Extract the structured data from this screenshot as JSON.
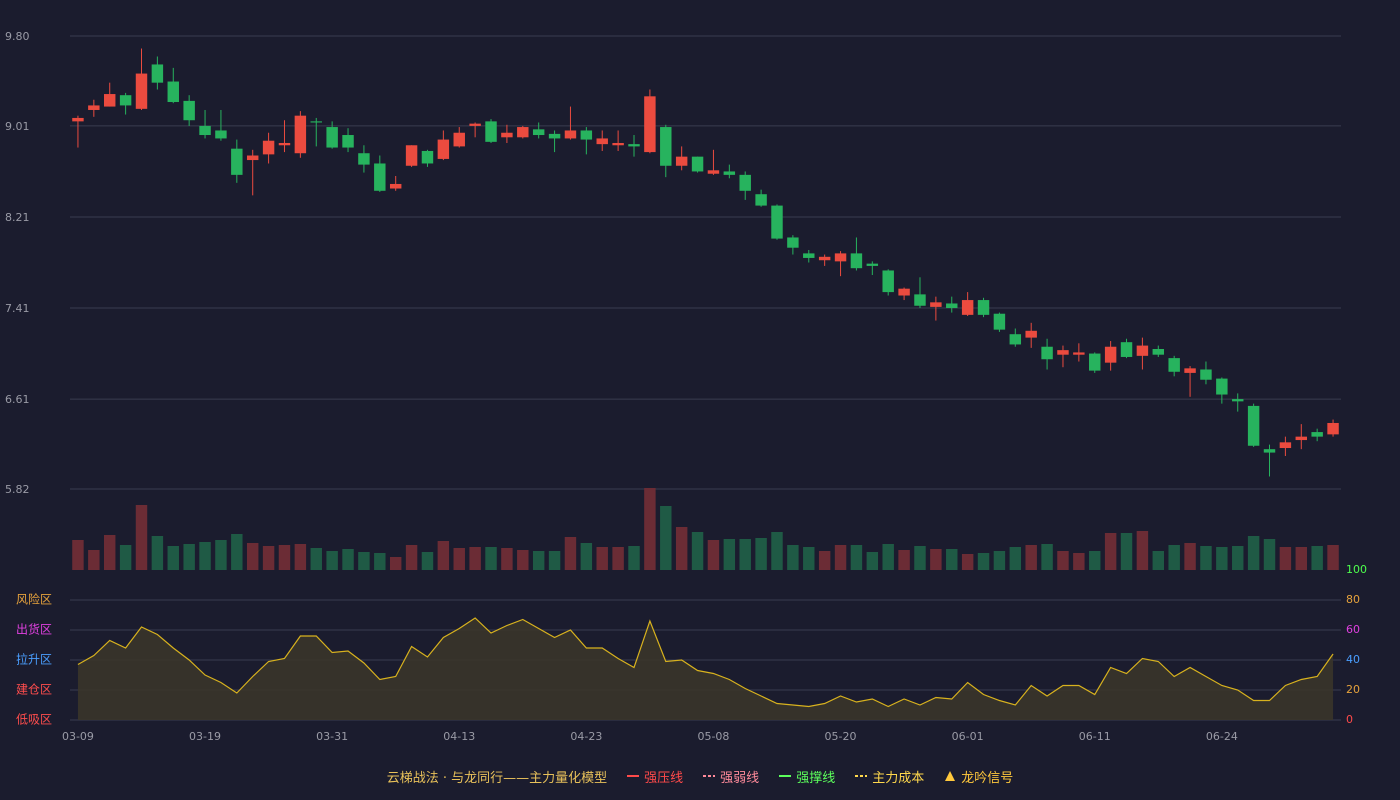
{
  "chart_data": [
    {
      "type": "candlestick",
      "categories": [
        "03-09",
        null,
        null,
        null,
        null,
        null,
        null,
        null,
        "03-19",
        null,
        null,
        null,
        null,
        null,
        null,
        null,
        "03-31",
        null,
        null,
        null,
        null,
        null,
        null,
        null,
        "04-13",
        null,
        null,
        null,
        null,
        null,
        null,
        null,
        "04-23",
        null,
        null,
        null,
        null,
        null,
        null,
        null,
        "05-08",
        null,
        null,
        null,
        null,
        null,
        null,
        null,
        "05-20",
        null,
        null,
        null,
        null,
        null,
        null,
        null,
        "06-01",
        null,
        null,
        null,
        null,
        null,
        null,
        null,
        "06-11",
        null,
        null,
        null,
        null,
        null,
        null,
        null,
        "06-24",
        null,
        null,
        null,
        null,
        null,
        null,
        null
      ],
      "open": [
        9.05,
        9.15,
        9.18,
        9.28,
        9.16,
        9.55,
        9.4,
        9.23,
        9.01,
        8.97,
        8.81,
        8.71,
        8.76,
        8.84,
        8.77,
        9.05,
        9.0,
        8.93,
        8.77,
        8.68,
        8.46,
        8.66,
        8.79,
        8.72,
        8.83,
        9.01,
        9.05,
        8.91,
        8.91,
        8.98,
        8.94,
        8.9,
        8.97,
        8.85,
        8.84,
        8.85,
        8.78,
        9.0,
        8.66,
        8.74,
        8.59,
        8.61,
        8.58,
        8.41,
        8.31,
        8.03,
        7.89,
        7.83,
        7.82,
        7.89,
        7.8,
        7.74,
        7.52,
        7.53,
        7.42,
        7.45,
        7.35,
        7.48,
        7.36,
        7.18,
        7.15,
        7.07,
        7.0,
        7.0,
        7.01,
        6.93,
        7.11,
        6.99,
        7.05,
        6.97,
        6.84,
        6.87,
        6.79,
        6.61,
        6.55,
        6.17,
        6.18,
        6.25,
        6.32,
        6.3
      ],
      "high": [
        9.1,
        9.24,
        9.39,
        9.3,
        9.69,
        9.62,
        9.52,
        9.28,
        9.15,
        9.15,
        8.89,
        8.8,
        8.95,
        9.06,
        9.14,
        9.08,
        9.05,
        8.99,
        8.84,
        8.75,
        8.57,
        8.84,
        8.8,
        8.97,
        9.0,
        9.04,
        9.07,
        9.02,
        9.01,
        9.04,
        8.97,
        9.18,
        9.0,
        8.97,
        8.97,
        8.93,
        9.33,
        9.02,
        8.83,
        8.74,
        8.8,
        8.67,
        8.61,
        8.45,
        8.32,
        8.05,
        7.92,
        7.88,
        7.91,
        8.03,
        7.82,
        7.75,
        7.59,
        7.68,
        7.51,
        7.51,
        7.55,
        7.5,
        7.37,
        7.23,
        7.28,
        7.14,
        7.08,
        7.1,
        7.02,
        7.12,
        7.14,
        7.15,
        7.08,
        6.99,
        6.9,
        6.94,
        6.8,
        6.66,
        6.57,
        6.21,
        6.28,
        6.39,
        6.35,
        6.43
      ],
      "low": [
        8.82,
        9.09,
        9.18,
        9.11,
        9.15,
        9.33,
        9.21,
        9.01,
        8.9,
        8.88,
        8.51,
        8.4,
        8.68,
        8.78,
        8.73,
        8.83,
        8.81,
        8.78,
        8.6,
        8.43,
        8.44,
        8.65,
        8.65,
        8.71,
        8.82,
        8.91,
        8.86,
        8.86,
        8.9,
        8.9,
        8.78,
        8.89,
        8.76,
        8.79,
        8.79,
        8.74,
        8.77,
        8.56,
        8.62,
        8.6,
        8.58,
        8.55,
        8.36,
        8.3,
        8.01,
        7.88,
        7.81,
        7.78,
        7.69,
        7.74,
        7.7,
        7.52,
        7.48,
        7.41,
        7.3,
        7.37,
        7.34,
        7.33,
        7.2,
        7.07,
        7.06,
        6.87,
        6.89,
        6.94,
        6.84,
        6.86,
        6.97,
        6.87,
        6.98,
        6.81,
        6.63,
        6.74,
        6.57,
        6.5,
        6.19,
        5.93,
        6.11,
        6.17,
        6.24,
        6.28
      ],
      "close": [
        9.08,
        9.19,
        9.29,
        9.19,
        9.47,
        9.39,
        9.22,
        9.06,
        8.93,
        8.9,
        8.58,
        8.75,
        8.88,
        8.86,
        9.1,
        9.04,
        8.82,
        8.82,
        8.67,
        8.44,
        8.5,
        8.84,
        8.68,
        8.89,
        8.95,
        9.03,
        8.87,
        8.95,
        9.0,
        8.93,
        8.9,
        8.97,
        8.89,
        8.9,
        8.86,
        8.83,
        9.27,
        8.66,
        8.74,
        8.61,
        8.62,
        8.58,
        8.44,
        8.31,
        8.02,
        7.94,
        7.85,
        7.86,
        7.89,
        7.76,
        7.78,
        7.55,
        7.58,
        7.43,
        7.46,
        7.41,
        7.48,
        7.35,
        7.22,
        7.09,
        7.21,
        6.96,
        7.04,
        7.02,
        6.86,
        7.07,
        6.98,
        7.08,
        7.0,
        6.85,
        6.88,
        6.78,
        6.65,
        6.59,
        6.2,
        6.14,
        6.23,
        6.28,
        6.28,
        6.4
      ],
      "up_color": "#eb4b3f",
      "down_color": "#27b35e",
      "ylim": [
        5.82,
        9.8
      ],
      "yticks": [
        {
          "value": 9.8,
          "label": "9.80"
        },
        9.01,
        8.21,
        7.41,
        6.61,
        5.82
      ],
      "grid": true
    },
    {
      "type": "bar",
      "values": [
        30,
        20,
        35,
        25,
        65,
        34,
        24,
        26,
        28,
        30,
        36,
        27,
        24,
        25,
        26,
        22,
        19,
        21,
        18,
        17,
        13,
        25,
        18,
        29,
        22,
        23,
        23,
        22,
        20,
        19,
        19,
        33,
        27,
        23,
        23,
        24,
        82,
        64,
        43,
        38,
        30,
        31,
        31,
        32,
        38,
        25,
        23,
        19,
        25,
        25,
        18,
        26,
        20,
        24,
        21,
        21,
        16,
        17,
        19,
        23,
        25,
        26,
        19,
        17,
        19,
        37,
        37,
        39,
        19,
        25,
        27,
        24,
        23,
        24,
        34,
        31,
        23,
        23,
        24,
        25
      ],
      "up_color": "#6b2c35",
      "down_color": "#1f5a45"
    },
    {
      "type": "line",
      "values": [
        37,
        43,
        53,
        48,
        62,
        57,
        48,
        40,
        30,
        25,
        18,
        29,
        39,
        41,
        56,
        56,
        45,
        46,
        38,
        27,
        29,
        49,
        42,
        55,
        61,
        68,
        58,
        63,
        67,
        61,
        55,
        60,
        48,
        48,
        41,
        35,
        66,
        39,
        40,
        33,
        31,
        27,
        21,
        16,
        11,
        10,
        9,
        11,
        16,
        12,
        14,
        9,
        14,
        10,
        15,
        14,
        25,
        17,
        13,
        10,
        23,
        16,
        23,
        23,
        17,
        35,
        31,
        41,
        39,
        29,
        35,
        29,
        23,
        20,
        13,
        13,
        23,
        27,
        29,
        44
      ],
      "color": "#d8b21e",
      "fill": "#3b3629",
      "y2lim": [
        0,
        100
      ],
      "y2ticks": [
        0,
        20,
        40,
        60,
        80,
        100
      ],
      "tick_colors": [
        "#ff4a4a",
        "#e6a23c",
        "#4a9eff",
        "#e040e0",
        "#e6a23c",
        "#4cff4c"
      ],
      "zones": [
        {
          "label": "风险区",
          "color": "#e6a23c"
        },
        {
          "label": "出货区",
          "color": "#e040e0"
        },
        {
          "label": "拉升区",
          "color": "#4a9eff"
        },
        {
          "label": "建仓区",
          "color": "#ff4d4d"
        },
        {
          "label": "低吸区",
          "color": "#ff4d4d"
        }
      ],
      "grid": true
    }
  ],
  "legend": {
    "title": "云梯战法 · 与龙同行——主力量化模型",
    "title_color": "#e8c15a",
    "items": [
      {
        "name": "强压线",
        "color": "#ff4a4a",
        "style": "solid"
      },
      {
        "name": "强弱线",
        "color": "#ff8a9a",
        "style": "dashed"
      },
      {
        "name": "强撑线",
        "color": "#5cff5c",
        "style": "solid"
      },
      {
        "name": "主力成本",
        "color": "#ffd84c",
        "style": "dashed"
      },
      {
        "name": "龙吟信号",
        "color": "#ffc83c",
        "style": "triangle"
      }
    ]
  }
}
